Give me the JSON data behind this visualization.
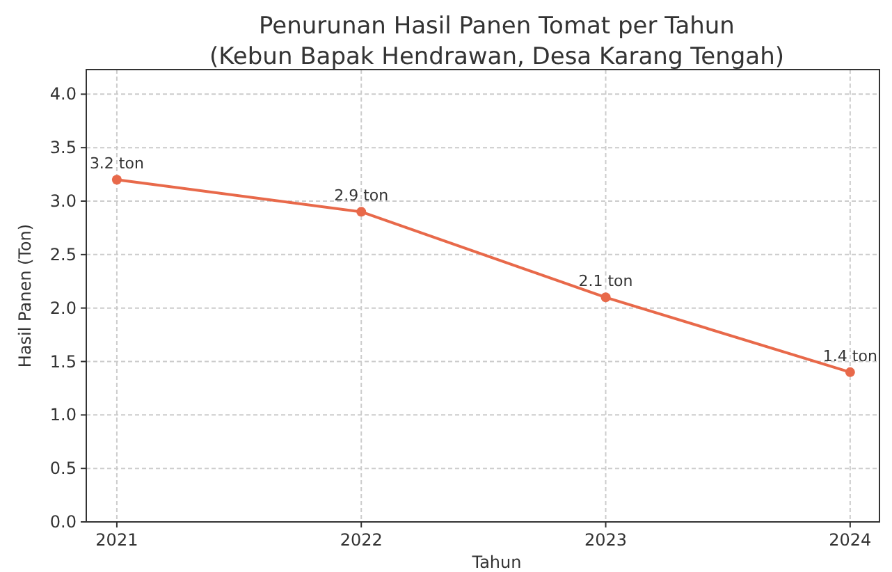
{
  "chart_data": {
    "type": "line",
    "title": "Penurunan Hasil Panen Tomat per Tahun",
    "subtitle": "(Kebun Bapak Hendrawan, Desa Karang Tengah)",
    "xlabel": "Tahun",
    "ylabel": "Hasil Panen (Ton)",
    "x": [
      2021,
      2022,
      2023,
      2024
    ],
    "series": [
      {
        "color": "#e8694a",
        "values": [
          3.2,
          2.9,
          2.1,
          1.4
        ],
        "value_labels": [
          "3.2 ton",
          "2.9 ton",
          "2.1 ton",
          "1.4 ton"
        ]
      }
    ],
    "xlim": [
      2020.875,
      2024.12
    ],
    "xticks": [
      2021,
      2022,
      2023,
      2024
    ],
    "ylim": [
      0,
      4.23
    ],
    "yticks": [
      {
        "value": 0,
        "label": "0.0"
      },
      {
        "value": 0.5,
        "label": "0.5"
      },
      {
        "value": 1,
        "label": "1.0"
      },
      {
        "value": 1.5,
        "label": "1.5"
      },
      {
        "value": 2,
        "label": "2.0"
      },
      {
        "value": 2.5,
        "label": "2.5"
      },
      {
        "value": 3,
        "label": "3.0"
      },
      {
        "value": 3.5,
        "label": "3.5"
      },
      {
        "value": 4,
        "label": "4.0"
      }
    ],
    "grid": true,
    "marker": "circle",
    "line_style": "solid"
  }
}
